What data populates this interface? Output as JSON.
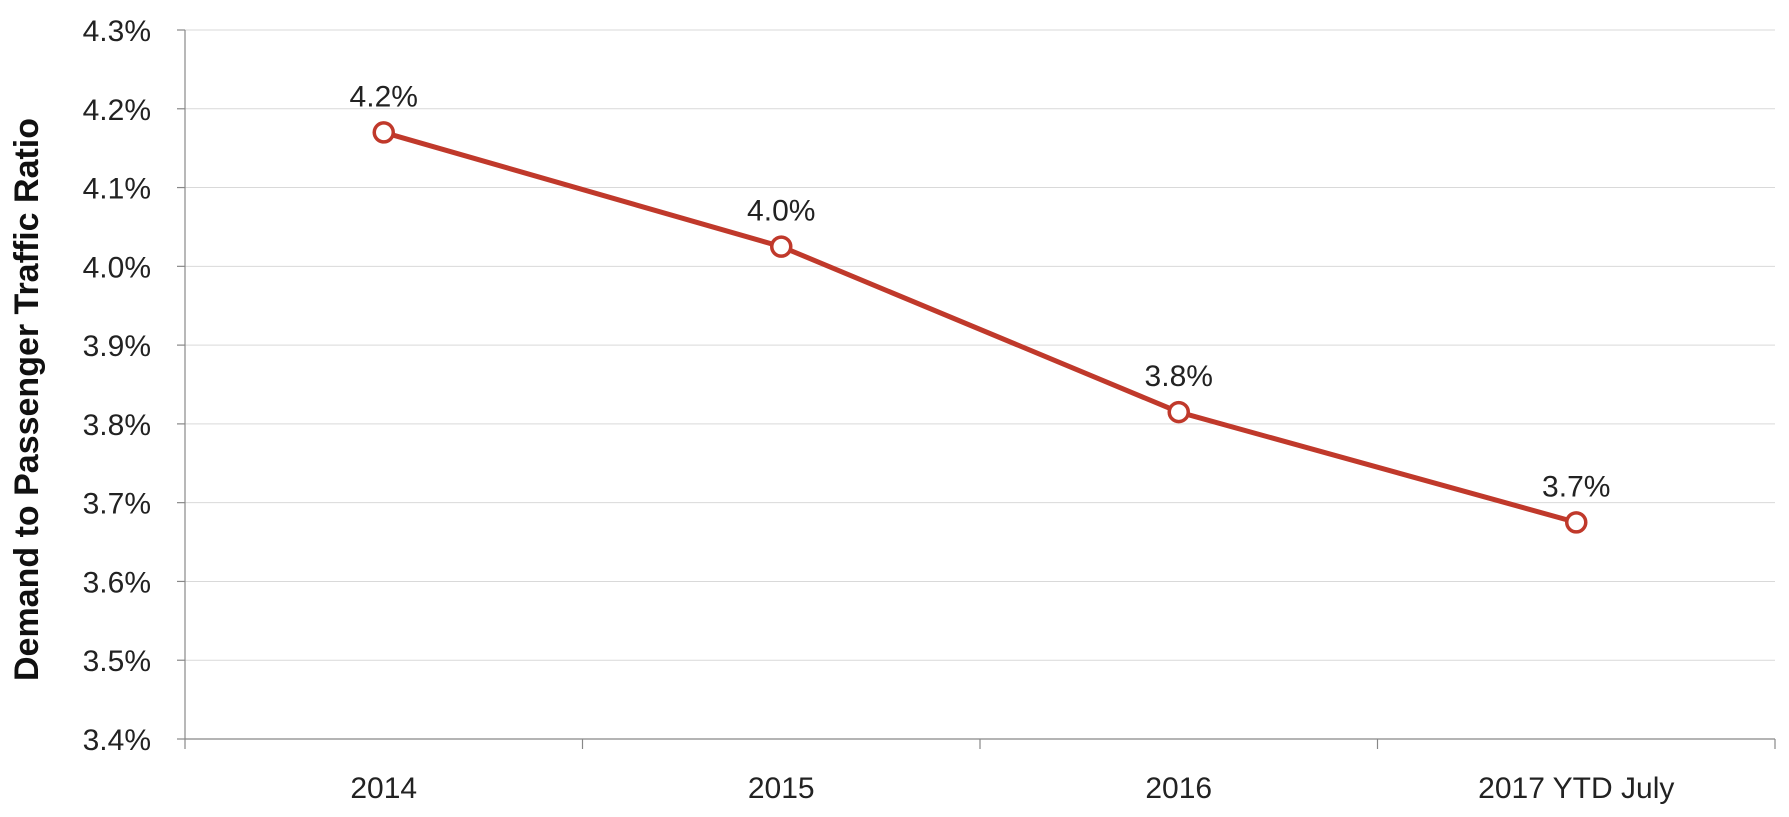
{
  "chart_data": {
    "type": "line",
    "categories": [
      "2014",
      "2015",
      "2016",
      "2017 YTD July"
    ],
    "series": [
      {
        "values": [
          4.17,
          4.025,
          3.815,
          3.675
        ],
        "labels": [
          "4.2%",
          "4.0%",
          "3.8%",
          "3.7%"
        ]
      }
    ],
    "ylabel": "Demand to Passenger Traffic Ratio",
    "xlabel": "",
    "ylim": [
      3.4,
      4.3
    ],
    "yticks": [
      "3.4%",
      "3.5%",
      "3.6%",
      "3.7%",
      "3.8%",
      "3.9%",
      "4.0%",
      "4.1%",
      "4.2%",
      "4.3%"
    ],
    "grid": true,
    "line_color": "#c0392b",
    "grid_color": "#d9d9d9",
    "axis_color": "#888888"
  }
}
